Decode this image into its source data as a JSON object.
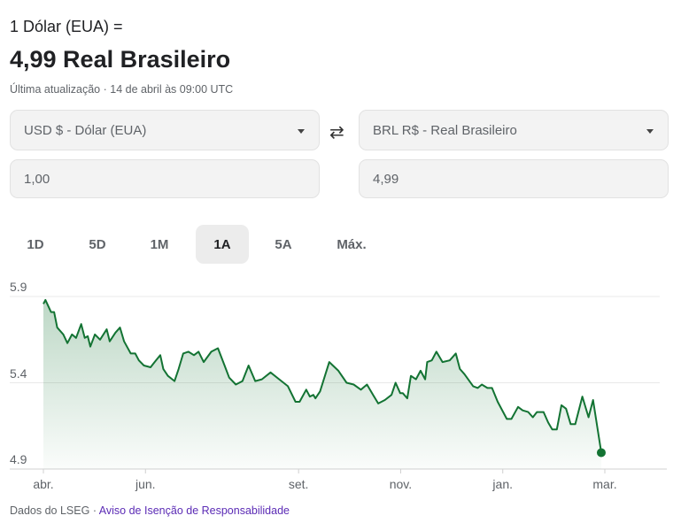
{
  "header": {
    "equation": "1 Dólar (EUA) =",
    "result": "4,99 Real Brasileiro",
    "updated": "Última atualização · 14 de abril às 09:00 UTC"
  },
  "converter": {
    "from_currency": "USD $ - Dólar (EUA)",
    "to_currency": "BRL R$ - Real Brasileiro",
    "from_amount": "1,00",
    "to_amount": "4,99",
    "swap_icon": "⇄"
  },
  "tabs": [
    {
      "label": "1D"
    },
    {
      "label": "5D"
    },
    {
      "label": "1M"
    },
    {
      "label": "1A",
      "active": true
    },
    {
      "label": "5A"
    },
    {
      "label": "Máx."
    }
  ],
  "footer": {
    "source": "Dados do LSEG",
    "separator": "·",
    "disclaimer": "Aviso de Isenção de Responsabilidade"
  },
  "colors": {
    "line": "#137333",
    "grid": "#e8e8e8"
  },
  "chart_data": {
    "type": "area",
    "title": "",
    "xlabel": "",
    "ylabel": "",
    "ylim": [
      4.9,
      5.9
    ],
    "yticks": [
      "5.9",
      "5.4",
      "4.9"
    ],
    "xlim_months": [
      0,
      11
    ],
    "xticks": [
      {
        "label": "abr.",
        "month": 0
      },
      {
        "label": "jun.",
        "month": 2
      },
      {
        "label": "set.",
        "month": 5
      },
      {
        "label": "nov.",
        "month": 7
      },
      {
        "label": "jan.",
        "month": 9
      },
      {
        "label": "mar.",
        "month": 11
      }
    ],
    "series": [
      {
        "name": "USD/BRL",
        "x_months": [
          0,
          0.04,
          0.15,
          0.21,
          0.27,
          0.39,
          0.47,
          0.56,
          0.64,
          0.74,
          0.81,
          0.87,
          0.92,
          1.01,
          1.11,
          1.24,
          1.3,
          1.41,
          1.5,
          1.58,
          1.71,
          1.8,
          1.87,
          1.97,
          2.1,
          2.18,
          2.29,
          2.35,
          2.44,
          2.57,
          2.65,
          2.74,
          2.84,
          2.95,
          3.04,
          3.14,
          3.29,
          3.42,
          3.55,
          3.64,
          3.77,
          3.9,
          4.02,
          4.15,
          4.28,
          4.45,
          4.62,
          4.79,
          4.94,
          5.02,
          5.15,
          5.22,
          5.29,
          5.33,
          5.42,
          5.6,
          5.78,
          5.94,
          6.08,
          6.22,
          6.34,
          6.46,
          6.56,
          6.69,
          6.82,
          6.9,
          6.99,
          7.04,
          7.13,
          7.2,
          7.3,
          7.39,
          7.48,
          7.52,
          7.61,
          7.7,
          7.82,
          7.96,
          8.08,
          8.16,
          8.25,
          8.42,
          8.51,
          8.59,
          8.7,
          8.79,
          8.9,
          9.08,
          9.17,
          9.3,
          9.39,
          9.5,
          9.59,
          9.67,
          9.8,
          9.89,
          9.97,
          10.06,
          10.15,
          10.24,
          10.33,
          10.42,
          10.56,
          10.68,
          10.77,
          10.93
        ],
        "values": [
          5.857,
          5.88,
          5.81,
          5.81,
          5.72,
          5.68,
          5.63,
          5.68,
          5.66,
          5.74,
          5.66,
          5.67,
          5.61,
          5.68,
          5.65,
          5.71,
          5.64,
          5.69,
          5.72,
          5.64,
          5.57,
          5.57,
          5.53,
          5.5,
          5.49,
          5.52,
          5.56,
          5.48,
          5.44,
          5.41,
          5.48,
          5.57,
          5.58,
          5.56,
          5.58,
          5.52,
          5.58,
          5.6,
          5.5,
          5.43,
          5.39,
          5.41,
          5.5,
          5.41,
          5.42,
          5.46,
          5.42,
          5.38,
          5.29,
          5.29,
          5.36,
          5.32,
          5.33,
          5.31,
          5.35,
          5.52,
          5.47,
          5.4,
          5.39,
          5.36,
          5.39,
          5.33,
          5.28,
          5.3,
          5.33,
          5.4,
          5.34,
          5.34,
          5.31,
          5.44,
          5.42,
          5.47,
          5.42,
          5.52,
          5.53,
          5.58,
          5.52,
          5.53,
          5.57,
          5.48,
          5.45,
          5.38,
          5.37,
          5.39,
          5.37,
          5.37,
          5.29,
          5.19,
          5.19,
          5.26,
          5.24,
          5.23,
          5.2,
          5.23,
          5.23,
          5.17,
          5.13,
          5.13,
          5.27,
          5.25,
          5.16,
          5.16,
          5.32,
          5.2,
          5.3,
          4.995
        ]
      }
    ]
  }
}
